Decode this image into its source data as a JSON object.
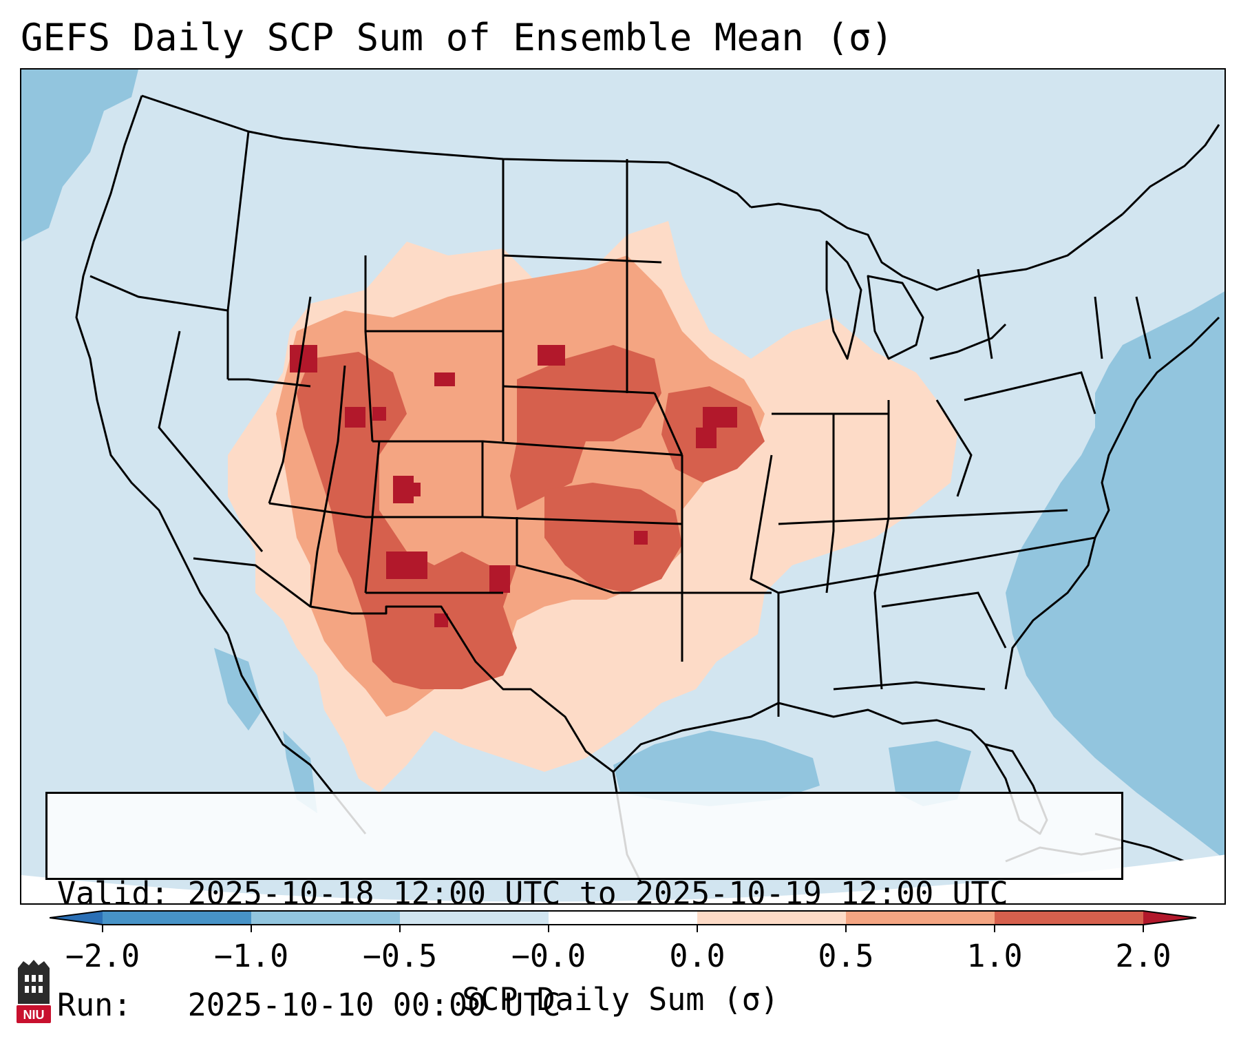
{
  "title": "GEFS Daily SCP Sum of Ensemble Mean (σ)",
  "info": {
    "valid_label": "Valid:",
    "valid_value": "2025-10-18 12:00 UTC to 2025-10-19 12:00 UTC",
    "run_label": "Run:",
    "run_value": "2025-10-10 00:00 UTC"
  },
  "colorbar": {
    "label": "SCP Daily Sum (σ)",
    "ticks": [
      "−2.0",
      "−1.0",
      "−0.5",
      "−0.0",
      "0.0",
      "0.5",
      "1.0",
      "2.0"
    ],
    "colors": {
      "extend_low": "#2a6fb5",
      "b1": "#4793c7",
      "b2": "#92c5de",
      "b3": "#d1e5f0",
      "b4": "#fddbc7",
      "b5": "#f4a582",
      "b6": "#d6604d",
      "extend_high": "#b2182b"
    }
  },
  "logo": {
    "text": "NIU",
    "color": "#c8102e"
  }
}
